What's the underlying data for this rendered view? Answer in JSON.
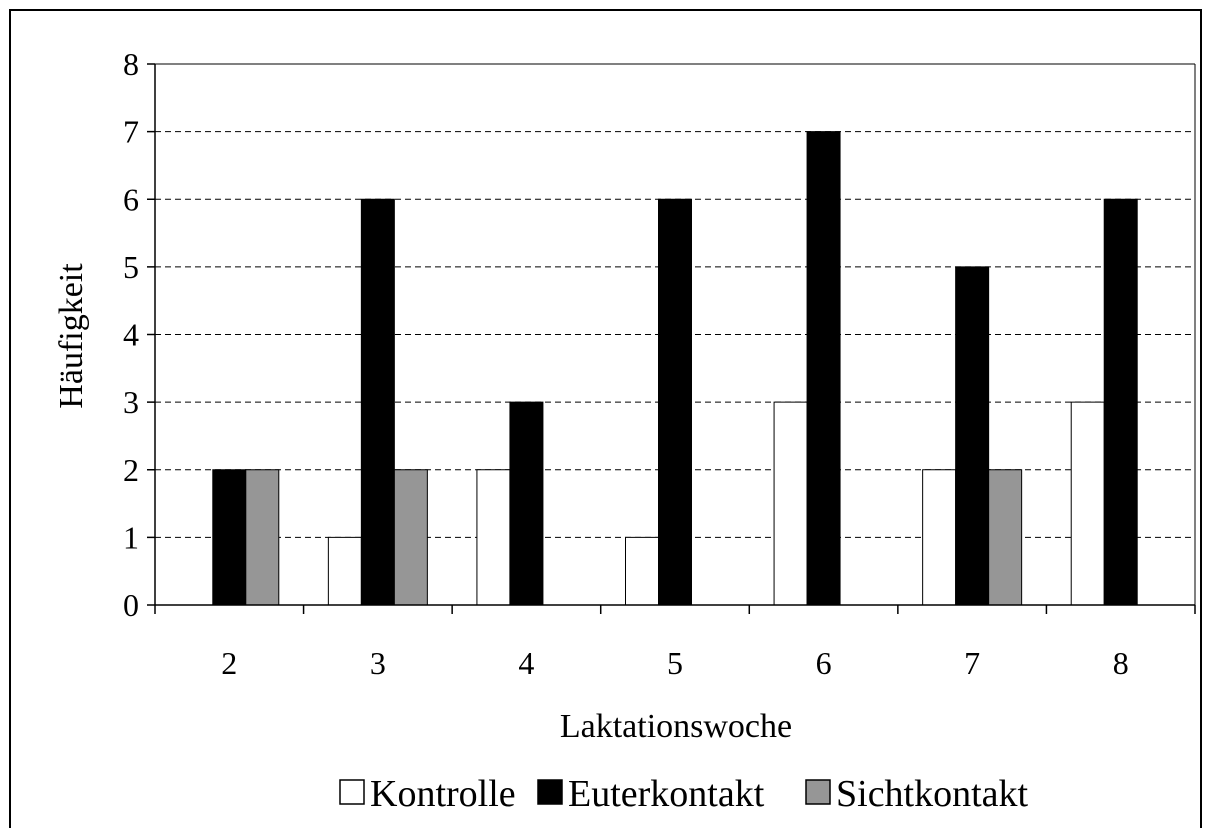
{
  "chart_data": {
    "type": "bar",
    "xlabel": "Laktationswoche",
    "ylabel": "Häufigkeit",
    "ylim": [
      0,
      8
    ],
    "yticks": [
      "0",
      "1",
      "2",
      "3",
      "4",
      "5",
      "6",
      "7",
      "8"
    ],
    "categories": [
      "2",
      "3",
      "4",
      "5",
      "6",
      "7",
      "8"
    ],
    "series": [
      {
        "name": "Kontrolle",
        "values": [
          0,
          1,
          2,
          1,
          3,
          2,
          3
        ],
        "color": "#ffffff"
      },
      {
        "name": "Euterkontakt",
        "values": [
          2,
          6,
          3,
          6,
          7,
          5,
          6
        ],
        "color": "#000000"
      },
      {
        "name": "Sichtkontakt",
        "values": [
          2,
          2,
          0,
          0,
          0,
          2,
          0
        ],
        "color": "#969696"
      }
    ],
    "grid": "horizontal dashed",
    "legend_position": "bottom"
  }
}
